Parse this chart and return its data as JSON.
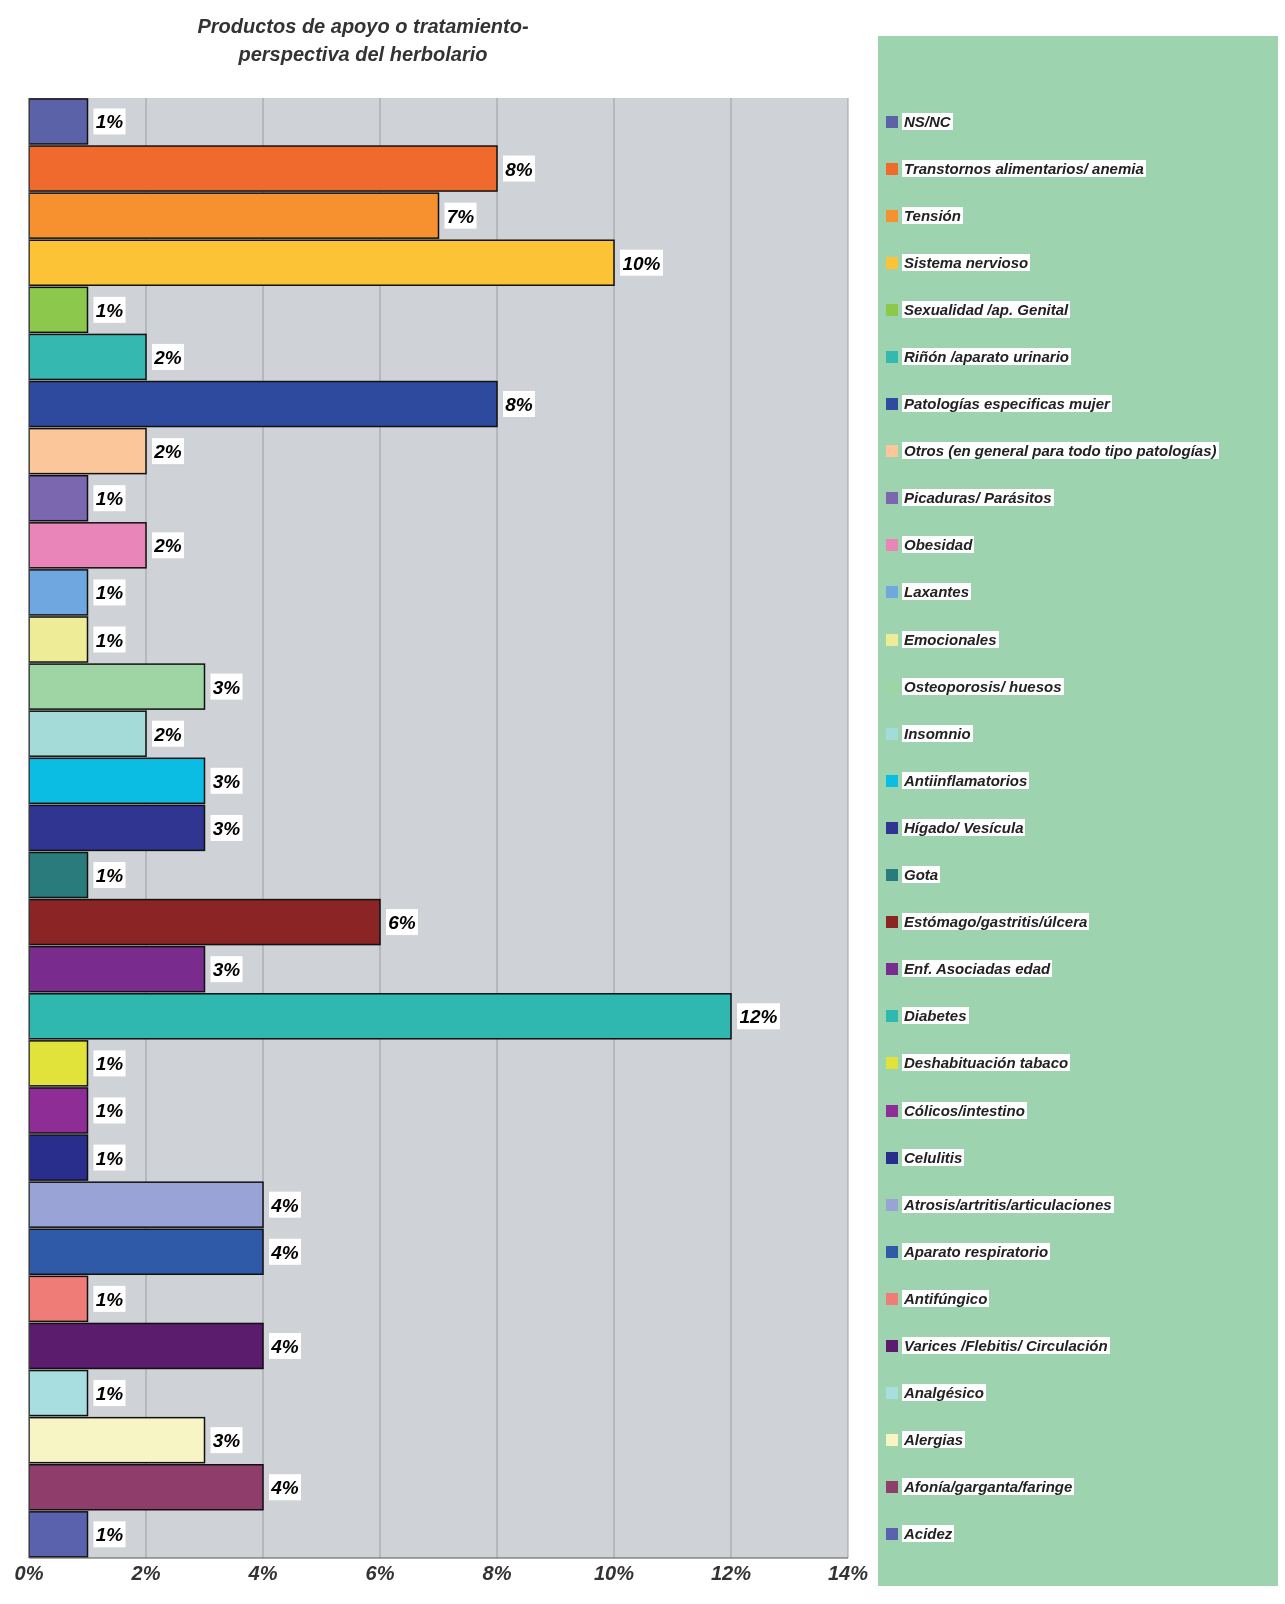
{
  "chart_data": {
    "type": "bar",
    "orientation": "horizontal",
    "stacked": true,
    "title": "Productos de apoyo o tratamiento-perspectiva del herbolario",
    "categories": [
      null,
      null,
      null,
      null,
      null,
      null,
      null,
      null,
      null,
      null,
      null,
      null,
      null,
      null,
      null,
      null,
      null,
      null,
      null,
      null,
      null,
      null,
      null,
      null,
      null,
      null,
      null,
      null,
      null,
      null,
      null
    ],
    "series": [
      {
        "name": "NS/NC",
        "color": "#5b62a8",
        "values": [
          1,
          null,
          null,
          null,
          null,
          null,
          null,
          null,
          null,
          null,
          null,
          null,
          null,
          null,
          null,
          null,
          null,
          null,
          null,
          null,
          null,
          null,
          null,
          null,
          null,
          null,
          null,
          null,
          null,
          null,
          null
        ],
        "value_labels": [
          "1%",
          null,
          null,
          null,
          null,
          null,
          null,
          null,
          null,
          null,
          null,
          null,
          null,
          null,
          null,
          null,
          null,
          null,
          null,
          null,
          null,
          null,
          null,
          null,
          null,
          null,
          null,
          null,
          null,
          null,
          null
        ]
      },
      {
        "name": "Transtornos alimentarios/ anemia",
        "color": "#f06a2e",
        "values": [
          null,
          8,
          null,
          null,
          null,
          null,
          null,
          null,
          null,
          null,
          null,
          null,
          null,
          null,
          null,
          null,
          null,
          null,
          null,
          null,
          null,
          null,
          null,
          null,
          null,
          null,
          null,
          null,
          null,
          null,
          null
        ],
        "value_labels": [
          null,
          "8%",
          null,
          null,
          null,
          null,
          null,
          null,
          null,
          null,
          null,
          null,
          null,
          null,
          null,
          null,
          null,
          null,
          null,
          null,
          null,
          null,
          null,
          null,
          null,
          null,
          null,
          null,
          null,
          null,
          null
        ]
      },
      {
        "name": "Tensión",
        "color": "#f7902f",
        "values": [
          null,
          null,
          7,
          null,
          null,
          null,
          null,
          null,
          null,
          null,
          null,
          null,
          null,
          null,
          null,
          null,
          null,
          null,
          null,
          null,
          null,
          null,
          null,
          null,
          null,
          null,
          null,
          null,
          null,
          null,
          null
        ],
        "value_labels": [
          null,
          null,
          "7%",
          null,
          null,
          null,
          null,
          null,
          null,
          null,
          null,
          null,
          null,
          null,
          null,
          null,
          null,
          null,
          null,
          null,
          null,
          null,
          null,
          null,
          null,
          null,
          null,
          null,
          null,
          null,
          null
        ]
      },
      {
        "name": "Sistema nervioso",
        "color": "#fbc335",
        "values": [
          null,
          null,
          null,
          10,
          null,
          null,
          null,
          null,
          null,
          null,
          null,
          null,
          null,
          null,
          null,
          null,
          null,
          null,
          null,
          null,
          null,
          null,
          null,
          null,
          null,
          null,
          null,
          null,
          null,
          null,
          null
        ],
        "value_labels": [
          null,
          null,
          null,
          "10%",
          null,
          null,
          null,
          null,
          null,
          null,
          null,
          null,
          null,
          null,
          null,
          null,
          null,
          null,
          null,
          null,
          null,
          null,
          null,
          null,
          null,
          null,
          null,
          null,
          null,
          null,
          null
        ]
      },
      {
        "name": "Sexualidad /ap. Genital",
        "color": "#8cc84b",
        "values": [
          null,
          null,
          null,
          null,
          1,
          null,
          null,
          null,
          null,
          null,
          null,
          null,
          null,
          null,
          null,
          null,
          null,
          null,
          null,
          null,
          null,
          null,
          null,
          null,
          null,
          null,
          null,
          null,
          null,
          null,
          null
        ],
        "value_labels": [
          null,
          null,
          null,
          null,
          "1%",
          null,
          null,
          null,
          null,
          null,
          null,
          null,
          null,
          null,
          null,
          null,
          null,
          null,
          null,
          null,
          null,
          null,
          null,
          null,
          null,
          null,
          null,
          null,
          null,
          null,
          null
        ]
      },
      {
        "name": "Riñón /aparato urinario",
        "color": "#34b8b0",
        "values": [
          null,
          null,
          null,
          null,
          null,
          2,
          null,
          null,
          null,
          null,
          null,
          null,
          null,
          null,
          null,
          null,
          null,
          null,
          null,
          null,
          null,
          null,
          null,
          null,
          null,
          null,
          null,
          null,
          null,
          null,
          null
        ],
        "value_labels": [
          null,
          null,
          null,
          null,
          null,
          "2%",
          null,
          null,
          null,
          null,
          null,
          null,
          null,
          null,
          null,
          null,
          null,
          null,
          null,
          null,
          null,
          null,
          null,
          null,
          null,
          null,
          null,
          null,
          null,
          null,
          null
        ]
      },
      {
        "name": "Patologías especificas mujer",
        "color": "#2e4a9e",
        "values": [
          null,
          null,
          null,
          null,
          null,
          null,
          8,
          null,
          null,
          null,
          null,
          null,
          null,
          null,
          null,
          null,
          null,
          null,
          null,
          null,
          null,
          null,
          null,
          null,
          null,
          null,
          null,
          null,
          null,
          null,
          null
        ],
        "value_labels": [
          null,
          null,
          null,
          null,
          null,
          null,
          "8%",
          null,
          null,
          null,
          null,
          null,
          null,
          null,
          null,
          null,
          null,
          null,
          null,
          null,
          null,
          null,
          null,
          null,
          null,
          null,
          null,
          null,
          null,
          null,
          null
        ]
      },
      {
        "name": "Otros (en general para todo tipo patologías)",
        "color": "#fbc79a",
        "values": [
          null,
          null,
          null,
          null,
          null,
          null,
          null,
          2,
          null,
          null,
          null,
          null,
          null,
          null,
          null,
          null,
          null,
          null,
          null,
          null,
          null,
          null,
          null,
          null,
          null,
          null,
          null,
          null,
          null,
          null,
          null
        ],
        "value_labels": [
          null,
          null,
          null,
          null,
          null,
          null,
          null,
          "2%",
          null,
          null,
          null,
          null,
          null,
          null,
          null,
          null,
          null,
          null,
          null,
          null,
          null,
          null,
          null,
          null,
          null,
          null,
          null,
          null,
          null,
          null,
          null
        ]
      },
      {
        "name": "Picaduras/ Parásitos",
        "color": "#7b67b0",
        "values": [
          null,
          null,
          null,
          null,
          null,
          null,
          null,
          null,
          1,
          null,
          null,
          null,
          null,
          null,
          null,
          null,
          null,
          null,
          null,
          null,
          null,
          null,
          null,
          null,
          null,
          null,
          null,
          null,
          null,
          null,
          null
        ],
        "value_labels": [
          null,
          null,
          null,
          null,
          null,
          null,
          null,
          null,
          "1%",
          null,
          null,
          null,
          null,
          null,
          null,
          null,
          null,
          null,
          null,
          null,
          null,
          null,
          null,
          null,
          null,
          null,
          null,
          null,
          null,
          null,
          null
        ]
      },
      {
        "name": "Obesidad",
        "color": "#e985b8",
        "values": [
          null,
          null,
          null,
          null,
          null,
          null,
          null,
          null,
          null,
          2,
          null,
          null,
          null,
          null,
          null,
          null,
          null,
          null,
          null,
          null,
          null,
          null,
          null,
          null,
          null,
          null,
          null,
          null,
          null,
          null,
          null
        ],
        "value_labels": [
          null,
          null,
          null,
          null,
          null,
          null,
          null,
          null,
          null,
          "2%",
          null,
          null,
          null,
          null,
          null,
          null,
          null,
          null,
          null,
          null,
          null,
          null,
          null,
          null,
          null,
          null,
          null,
          null,
          null,
          null,
          null
        ]
      },
      {
        "name": "Laxantes",
        "color": "#6fa8e0",
        "values": [
          null,
          null,
          null,
          null,
          null,
          null,
          null,
          null,
          null,
          null,
          1,
          null,
          null,
          null,
          null,
          null,
          null,
          null,
          null,
          null,
          null,
          null,
          null,
          null,
          null,
          null,
          null,
          null,
          null,
          null,
          null
        ],
        "value_labels": [
          null,
          null,
          null,
          null,
          null,
          null,
          null,
          null,
          null,
          null,
          "1%",
          null,
          null,
          null,
          null,
          null,
          null,
          null,
          null,
          null,
          null,
          null,
          null,
          null,
          null,
          null,
          null,
          null,
          null,
          null,
          null
        ]
      },
      {
        "name": "Emocionales",
        "color": "#eeec96",
        "values": [
          null,
          null,
          null,
          null,
          null,
          null,
          null,
          null,
          null,
          null,
          null,
          1,
          null,
          null,
          null,
          null,
          null,
          null,
          null,
          null,
          null,
          null,
          null,
          null,
          null,
          null,
          null,
          null,
          null,
          null,
          null
        ],
        "value_labels": [
          null,
          null,
          null,
          null,
          null,
          null,
          null,
          null,
          null,
          null,
          null,
          "1%",
          null,
          null,
          null,
          null,
          null,
          null,
          null,
          null,
          null,
          null,
          null,
          null,
          null,
          null,
          null,
          null,
          null,
          null,
          null
        ]
      },
      {
        "name": "Osteoporosis/ huesos",
        "color": "#9fd4a4",
        "values": [
          null,
          null,
          null,
          null,
          null,
          null,
          null,
          null,
          null,
          null,
          null,
          null,
          3,
          null,
          null,
          null,
          null,
          null,
          null,
          null,
          null,
          null,
          null,
          null,
          null,
          null,
          null,
          null,
          null,
          null,
          null
        ],
        "value_labels": [
          null,
          null,
          null,
          null,
          null,
          null,
          null,
          null,
          null,
          null,
          null,
          null,
          "3%",
          null,
          null,
          null,
          null,
          null,
          null,
          null,
          null,
          null,
          null,
          null,
          null,
          null,
          null,
          null,
          null,
          null,
          null
        ]
      },
      {
        "name": "Insomnio",
        "color": "#a4dbd8",
        "values": [
          null,
          null,
          null,
          null,
          null,
          null,
          null,
          null,
          null,
          null,
          null,
          null,
          null,
          2,
          null,
          null,
          null,
          null,
          null,
          null,
          null,
          null,
          null,
          null,
          null,
          null,
          null,
          null,
          null,
          null,
          null
        ],
        "value_labels": [
          null,
          null,
          null,
          null,
          null,
          null,
          null,
          null,
          null,
          null,
          null,
          null,
          null,
          "2%",
          null,
          null,
          null,
          null,
          null,
          null,
          null,
          null,
          null,
          null,
          null,
          null,
          null,
          null,
          null,
          null,
          null
        ]
      },
      {
        "name": "Antiinflamatorios",
        "color": "#0cbde3",
        "values": [
          null,
          null,
          null,
          null,
          null,
          null,
          null,
          null,
          null,
          null,
          null,
          null,
          null,
          null,
          3,
          null,
          null,
          null,
          null,
          null,
          null,
          null,
          null,
          null,
          null,
          null,
          null,
          null,
          null,
          null,
          null
        ],
        "value_labels": [
          null,
          null,
          null,
          null,
          null,
          null,
          null,
          null,
          null,
          null,
          null,
          null,
          null,
          null,
          "3%",
          null,
          null,
          null,
          null,
          null,
          null,
          null,
          null,
          null,
          null,
          null,
          null,
          null,
          null,
          null,
          null
        ]
      },
      {
        "name": "Hígado/ Vesícula",
        "color": "#2f3591",
        "values": [
          null,
          null,
          null,
          null,
          null,
          null,
          null,
          null,
          null,
          null,
          null,
          null,
          null,
          null,
          null,
          3,
          null,
          null,
          null,
          null,
          null,
          null,
          null,
          null,
          null,
          null,
          null,
          null,
          null,
          null,
          null
        ],
        "value_labels": [
          null,
          null,
          null,
          null,
          null,
          null,
          null,
          null,
          null,
          null,
          null,
          null,
          null,
          null,
          null,
          "3%",
          null,
          null,
          null,
          null,
          null,
          null,
          null,
          null,
          null,
          null,
          null,
          null,
          null,
          null,
          null
        ]
      },
      {
        "name": "Gota",
        "color": "#2a7b7b",
        "values": [
          null,
          null,
          null,
          null,
          null,
          null,
          null,
          null,
          null,
          null,
          null,
          null,
          null,
          null,
          null,
          null,
          1,
          null,
          null,
          null,
          null,
          null,
          null,
          null,
          null,
          null,
          null,
          null,
          null,
          null,
          null
        ],
        "value_labels": [
          null,
          null,
          null,
          null,
          null,
          null,
          null,
          null,
          null,
          null,
          null,
          null,
          null,
          null,
          null,
          null,
          "1%",
          null,
          null,
          null,
          null,
          null,
          null,
          null,
          null,
          null,
          null,
          null,
          null,
          null,
          null
        ]
      },
      {
        "name": "Estómago/gastritis/úlcera",
        "color": "#8b2424",
        "values": [
          null,
          null,
          null,
          null,
          null,
          null,
          null,
          null,
          null,
          null,
          null,
          null,
          null,
          null,
          null,
          null,
          null,
          6,
          null,
          null,
          null,
          null,
          null,
          null,
          null,
          null,
          null,
          null,
          null,
          null,
          null
        ],
        "value_labels": [
          null,
          null,
          null,
          null,
          null,
          null,
          null,
          null,
          null,
          null,
          null,
          null,
          null,
          null,
          null,
          null,
          null,
          "6%",
          null,
          null,
          null,
          null,
          null,
          null,
          null,
          null,
          null,
          null,
          null,
          null,
          null
        ]
      },
      {
        "name": "Enf. Asociadas edad",
        "color": "#7a2b8e",
        "values": [
          null,
          null,
          null,
          null,
          null,
          null,
          null,
          null,
          null,
          null,
          null,
          null,
          null,
          null,
          null,
          null,
          null,
          null,
          3,
          null,
          null,
          null,
          null,
          null,
          null,
          null,
          null,
          null,
          null,
          null,
          null
        ],
        "value_labels": [
          null,
          null,
          null,
          null,
          null,
          null,
          null,
          null,
          null,
          null,
          null,
          null,
          null,
          null,
          null,
          null,
          null,
          null,
          "3%",
          null,
          null,
          null,
          null,
          null,
          null,
          null,
          null,
          null,
          null,
          null,
          null
        ]
      },
      {
        "name": "Diabetes",
        "color": "#2fb8b0",
        "values": [
          null,
          null,
          null,
          null,
          null,
          null,
          null,
          null,
          null,
          null,
          null,
          null,
          null,
          null,
          null,
          null,
          null,
          null,
          null,
          12,
          null,
          null,
          null,
          null,
          null,
          null,
          null,
          null,
          null,
          null,
          null
        ],
        "value_labels": [
          null,
          null,
          null,
          null,
          null,
          null,
          null,
          null,
          null,
          null,
          null,
          null,
          null,
          null,
          null,
          null,
          null,
          null,
          null,
          "12%",
          null,
          null,
          null,
          null,
          null,
          null,
          null,
          null,
          null,
          null,
          null
        ]
      },
      {
        "name": "Deshabituación tabaco",
        "color": "#e2e33a",
        "values": [
          null,
          null,
          null,
          null,
          null,
          null,
          null,
          null,
          null,
          null,
          null,
          null,
          null,
          null,
          null,
          null,
          null,
          null,
          null,
          null,
          1,
          null,
          null,
          null,
          null,
          null,
          null,
          null,
          null,
          null,
          null
        ],
        "value_labels": [
          null,
          null,
          null,
          null,
          null,
          null,
          null,
          null,
          null,
          null,
          null,
          null,
          null,
          null,
          null,
          null,
          null,
          null,
          null,
          null,
          "1%",
          null,
          null,
          null,
          null,
          null,
          null,
          null,
          null,
          null,
          null
        ]
      },
      {
        "name": "Cólicos/intestino",
        "color": "#8e2d96",
        "values": [
          null,
          null,
          null,
          null,
          null,
          null,
          null,
          null,
          null,
          null,
          null,
          null,
          null,
          null,
          null,
          null,
          null,
          null,
          null,
          null,
          null,
          1,
          null,
          null,
          null,
          null,
          null,
          null,
          null,
          null,
          null
        ],
        "value_labels": [
          null,
          null,
          null,
          null,
          null,
          null,
          null,
          null,
          null,
          null,
          null,
          null,
          null,
          null,
          null,
          null,
          null,
          null,
          null,
          null,
          null,
          "1%",
          null,
          null,
          null,
          null,
          null,
          null,
          null,
          null,
          null
        ]
      },
      {
        "name": "Celulitis",
        "color": "#292e8c",
        "values": [
          null,
          null,
          null,
          null,
          null,
          null,
          null,
          null,
          null,
          null,
          null,
          null,
          null,
          null,
          null,
          null,
          null,
          null,
          null,
          null,
          null,
          null,
          1,
          null,
          null,
          null,
          null,
          null,
          null,
          null,
          null
        ],
        "value_labels": [
          null,
          null,
          null,
          null,
          null,
          null,
          null,
          null,
          null,
          null,
          null,
          null,
          null,
          null,
          null,
          null,
          null,
          null,
          null,
          null,
          null,
          null,
          "1%",
          null,
          null,
          null,
          null,
          null,
          null,
          null,
          null
        ]
      },
      {
        "name": "Atrosis/artritis/articulaciones",
        "color": "#9aa3d6",
        "values": [
          null,
          null,
          null,
          null,
          null,
          null,
          null,
          null,
          null,
          null,
          null,
          null,
          null,
          null,
          null,
          null,
          null,
          null,
          null,
          null,
          null,
          null,
          null,
          4,
          null,
          null,
          null,
          null,
          null,
          null,
          null
        ],
        "value_labels": [
          null,
          null,
          null,
          null,
          null,
          null,
          null,
          null,
          null,
          null,
          null,
          null,
          null,
          null,
          null,
          null,
          null,
          null,
          null,
          null,
          null,
          null,
          null,
          "4%",
          null,
          null,
          null,
          null,
          null,
          null,
          null
        ]
      },
      {
        "name": "Aparato respiratorio",
        "color": "#2e5aa8",
        "values": [
          null,
          null,
          null,
          null,
          null,
          null,
          null,
          null,
          null,
          null,
          null,
          null,
          null,
          null,
          null,
          null,
          null,
          null,
          null,
          null,
          null,
          null,
          null,
          null,
          4,
          null,
          null,
          null,
          null,
          null,
          null
        ],
        "value_labels": [
          null,
          null,
          null,
          null,
          null,
          null,
          null,
          null,
          null,
          null,
          null,
          null,
          null,
          null,
          null,
          null,
          null,
          null,
          null,
          null,
          null,
          null,
          null,
          null,
          "4%",
          null,
          null,
          null,
          null,
          null,
          null
        ]
      },
      {
        "name": "Antifúngico",
        "color": "#f07c78",
        "values": [
          null,
          null,
          null,
          null,
          null,
          null,
          null,
          null,
          null,
          null,
          null,
          null,
          null,
          null,
          null,
          null,
          null,
          null,
          null,
          null,
          null,
          null,
          null,
          null,
          null,
          1,
          null,
          null,
          null,
          null,
          null
        ],
        "value_labels": [
          null,
          null,
          null,
          null,
          null,
          null,
          null,
          null,
          null,
          null,
          null,
          null,
          null,
          null,
          null,
          null,
          null,
          null,
          null,
          null,
          null,
          null,
          null,
          null,
          null,
          "1%",
          null,
          null,
          null,
          null,
          null
        ]
      },
      {
        "name": "Varices /Flebitis/ Circulación",
        "color": "#5b1c6e",
        "values": [
          null,
          null,
          null,
          null,
          null,
          null,
          null,
          null,
          null,
          null,
          null,
          null,
          null,
          null,
          null,
          null,
          null,
          null,
          null,
          null,
          null,
          null,
          null,
          null,
          null,
          null,
          4,
          null,
          null,
          null,
          null
        ],
        "value_labels": [
          null,
          null,
          null,
          null,
          null,
          null,
          null,
          null,
          null,
          null,
          null,
          null,
          null,
          null,
          null,
          null,
          null,
          null,
          null,
          null,
          null,
          null,
          null,
          null,
          null,
          null,
          "4%",
          null,
          null,
          null,
          null
        ]
      },
      {
        "name": "Analgésico",
        "color": "#a8dee0",
        "values": [
          null,
          null,
          null,
          null,
          null,
          null,
          null,
          null,
          null,
          null,
          null,
          null,
          null,
          null,
          null,
          null,
          null,
          null,
          null,
          null,
          null,
          null,
          null,
          null,
          null,
          null,
          null,
          1,
          null,
          null,
          null
        ],
        "value_labels": [
          null,
          null,
          null,
          null,
          null,
          null,
          null,
          null,
          null,
          null,
          null,
          null,
          null,
          null,
          null,
          null,
          null,
          null,
          null,
          null,
          null,
          null,
          null,
          null,
          null,
          null,
          null,
          "1%",
          null,
          null,
          null
        ]
      },
      {
        "name": "Alergias",
        "color": "#f8f5c4",
        "values": [
          null,
          null,
          null,
          null,
          null,
          null,
          null,
          null,
          null,
          null,
          null,
          null,
          null,
          null,
          null,
          null,
          null,
          null,
          null,
          null,
          null,
          null,
          null,
          null,
          null,
          null,
          null,
          null,
          3,
          null,
          null
        ],
        "value_labels": [
          null,
          null,
          null,
          null,
          null,
          null,
          null,
          null,
          null,
          null,
          null,
          null,
          null,
          null,
          null,
          null,
          null,
          null,
          null,
          null,
          null,
          null,
          null,
          null,
          null,
          null,
          null,
          null,
          "3%",
          null,
          null
        ]
      },
      {
        "name": "Afonía/garganta/faringe",
        "color": "#8f3d6b",
        "values": [
          null,
          null,
          null,
          null,
          null,
          null,
          null,
          null,
          null,
          null,
          null,
          null,
          null,
          null,
          null,
          null,
          null,
          null,
          null,
          null,
          null,
          null,
          null,
          null,
          null,
          null,
          null,
          null,
          null,
          4,
          null
        ],
        "value_labels": [
          null,
          null,
          null,
          null,
          null,
          null,
          null,
          null,
          null,
          null,
          null,
          null,
          null,
          null,
          null,
          null,
          null,
          null,
          null,
          null,
          null,
          null,
          null,
          null,
          null,
          null,
          null,
          null,
          null,
          "4%",
          null
        ]
      },
      {
        "name": "Acidez",
        "color": "#5a62ae",
        "values": [
          null,
          null,
          null,
          null,
          null,
          null,
          null,
          null,
          null,
          null,
          null,
          null,
          null,
          null,
          null,
          null,
          null,
          null,
          null,
          null,
          null,
          null,
          null,
          null,
          null,
          null,
          null,
          null,
          null,
          null,
          1
        ],
        "value_labels": [
          null,
          null,
          null,
          null,
          null,
          null,
          null,
          null,
          null,
          null,
          null,
          null,
          null,
          null,
          null,
          null,
          null,
          null,
          null,
          null,
          null,
          null,
          null,
          null,
          null,
          null,
          null,
          null,
          null,
          null,
          "1%"
        ]
      }
    ],
    "xlim": [
      0,
      14
    ],
    "xticks": [
      {
        "value": 0,
        "label": "0%"
      },
      {
        "value": 2,
        "label": "2%"
      },
      {
        "value": 4,
        "label": "4%"
      },
      {
        "value": 6,
        "label": "6%"
      },
      {
        "value": 8,
        "label": "8%"
      },
      {
        "value": 10,
        "label": "10%"
      },
      {
        "value": 12,
        "label": "12%"
      },
      {
        "value": 14,
        "label": "14%"
      }
    ],
    "grid": "x",
    "legend": "right",
    "tick_labels": "x"
  }
}
